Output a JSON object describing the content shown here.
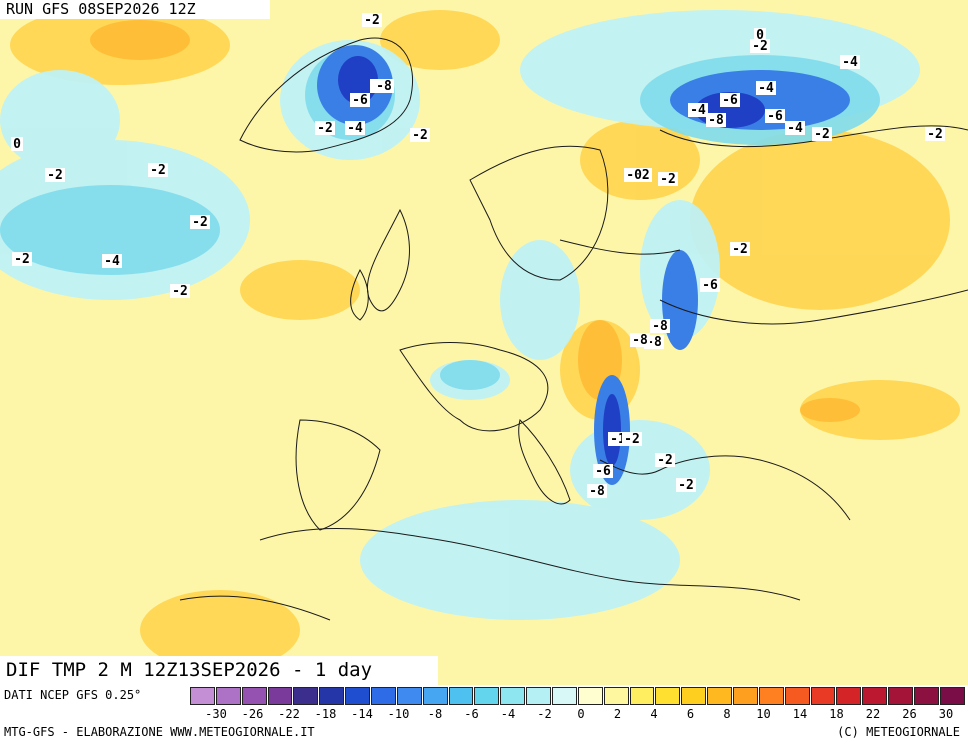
{
  "header": {
    "run_label": "RUN GFS 08SEP2026 12Z"
  },
  "map": {
    "product_label": "DIF TMP 2 M 12Z13SEP2026 - 1 day",
    "contour_labels": [
      "0",
      "-2",
      "-2",
      "-4",
      "-6",
      "-8",
      "-6",
      "-4",
      "-2",
      "-2",
      "-4",
      "-6",
      "-4",
      "-8",
      "-6",
      "-4",
      "-2",
      "-2",
      "-2",
      "-8",
      "-6",
      "-2",
      "-2",
      "-8",
      "-8",
      "-1",
      "-2",
      "-6",
      "-8",
      "-2",
      "-2",
      "0",
      "-02",
      "-2",
      "-4",
      "-2",
      "-2",
      "-2"
    ]
  },
  "legend": {
    "source": "DATI NCEP GFS 0.25°",
    "colors": [
      "#c58fd6",
      "#ad71c6",
      "#9552b0",
      "#7a3a9c",
      "#3c2e8c",
      "#2436a8",
      "#1f4fd0",
      "#2e6be6",
      "#3f8af0",
      "#46a6f2",
      "#4fc1f0",
      "#63d6ee",
      "#8ee6f0",
      "#b4f0f4",
      "#d8f8f8",
      "#fffed0",
      "#fff6a0",
      "#ffef60",
      "#ffe030",
      "#ffcf20",
      "#ffb820",
      "#ff9f20",
      "#ff8020",
      "#f65a20",
      "#e83a24",
      "#d42428",
      "#bc1830",
      "#a31438",
      "#8c1040",
      "#7a0c48"
    ],
    "ticks": [
      "-30",
      "-26",
      "-22",
      "-18",
      "-14",
      "-10",
      "-8",
      "-6",
      "-4",
      "-2",
      "0",
      "2",
      "4",
      "6",
      "8",
      "10",
      "14",
      "18",
      "22",
      "26",
      "30"
    ]
  },
  "footer": {
    "credits_left": "MTG-GFS - ELABORAZIONE WWW.METEOGIORNALE.IT",
    "credits_right": "(C) METEOGIORNALE"
  }
}
